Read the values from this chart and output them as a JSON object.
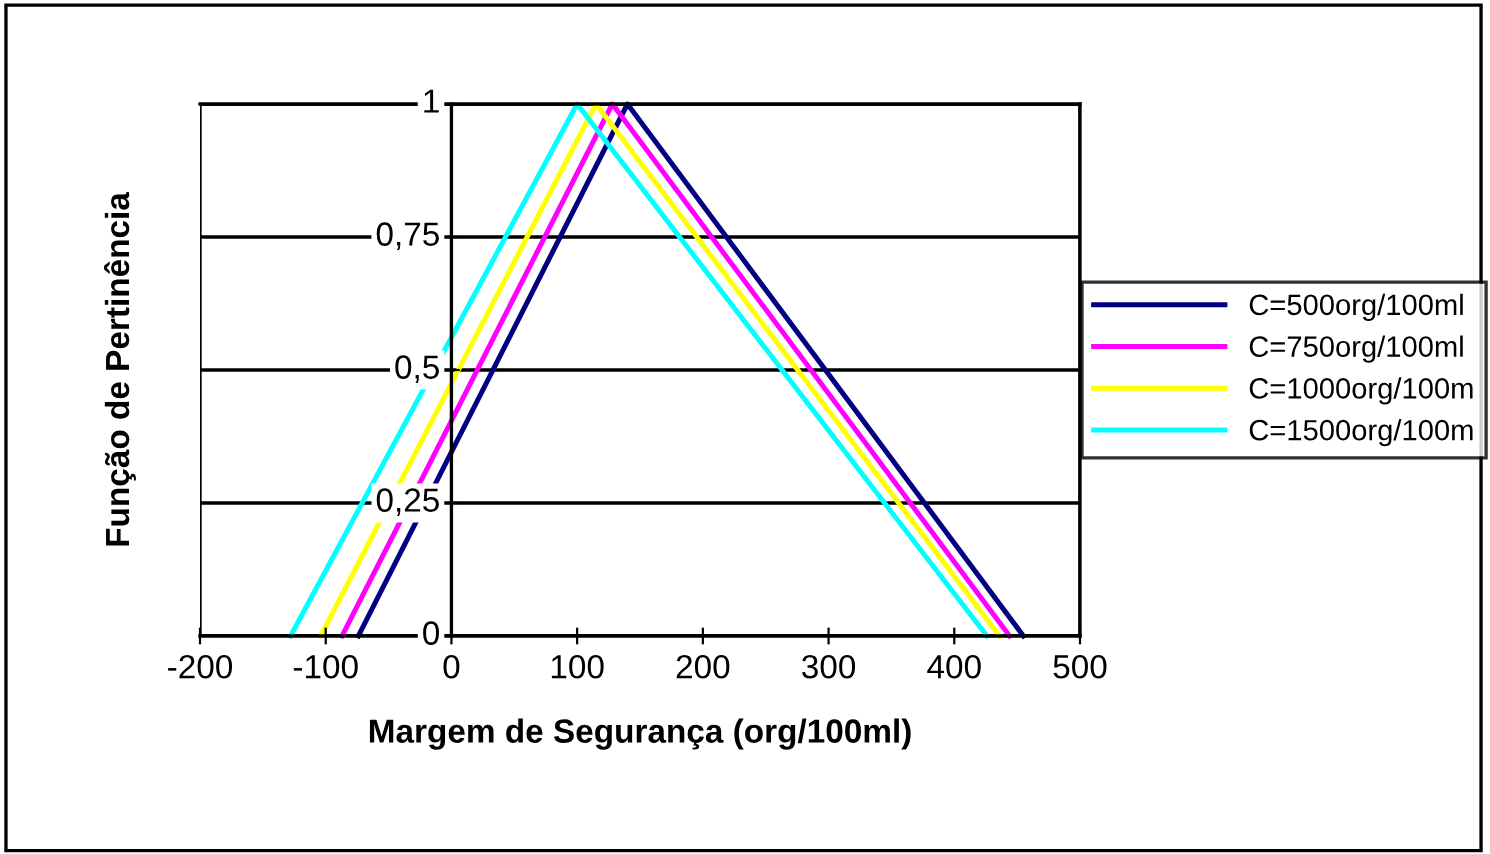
{
  "chart_data": {
    "type": "line",
    "xlabel": "Margem de Segurança (org/100ml)",
    "ylabel": "Função de Pertinência",
    "xlim": [
      -200,
      500
    ],
    "xticks": [
      -200,
      -100,
      0,
      100,
      200,
      300,
      400,
      500
    ],
    "ylim": [
      0,
      1
    ],
    "yticks": [
      0,
      {
        "value": 0.25,
        "label": "0,25"
      },
      {
        "value": 0.5,
        "label": "0,5"
      },
      {
        "value": 0.75,
        "label": "0,75"
      },
      1
    ],
    "grid": "y",
    "legend": "right",
    "marker": "none",
    "line_style": "solid",
    "series": [
      {
        "name": "C=500org/100ml",
        "color": "#000080",
        "x": [
          -74,
          140,
          455
        ],
        "values": [
          0,
          1,
          0
        ]
      },
      {
        "name": "C=750org/100ml",
        "color": "#ff00ff",
        "x": [
          -87,
          128,
          444
        ],
        "values": [
          0,
          1,
          0
        ]
      },
      {
        "name": "C=1000org/100m",
        "color": "#ffff00",
        "x": [
          -104,
          115,
          436
        ],
        "values": [
          0,
          1,
          0
        ]
      },
      {
        "name": "C=1500org/100m",
        "color": "#00ffff",
        "x": [
          -128,
          100,
          426
        ],
        "values": [
          0,
          1,
          0
        ]
      }
    ]
  }
}
